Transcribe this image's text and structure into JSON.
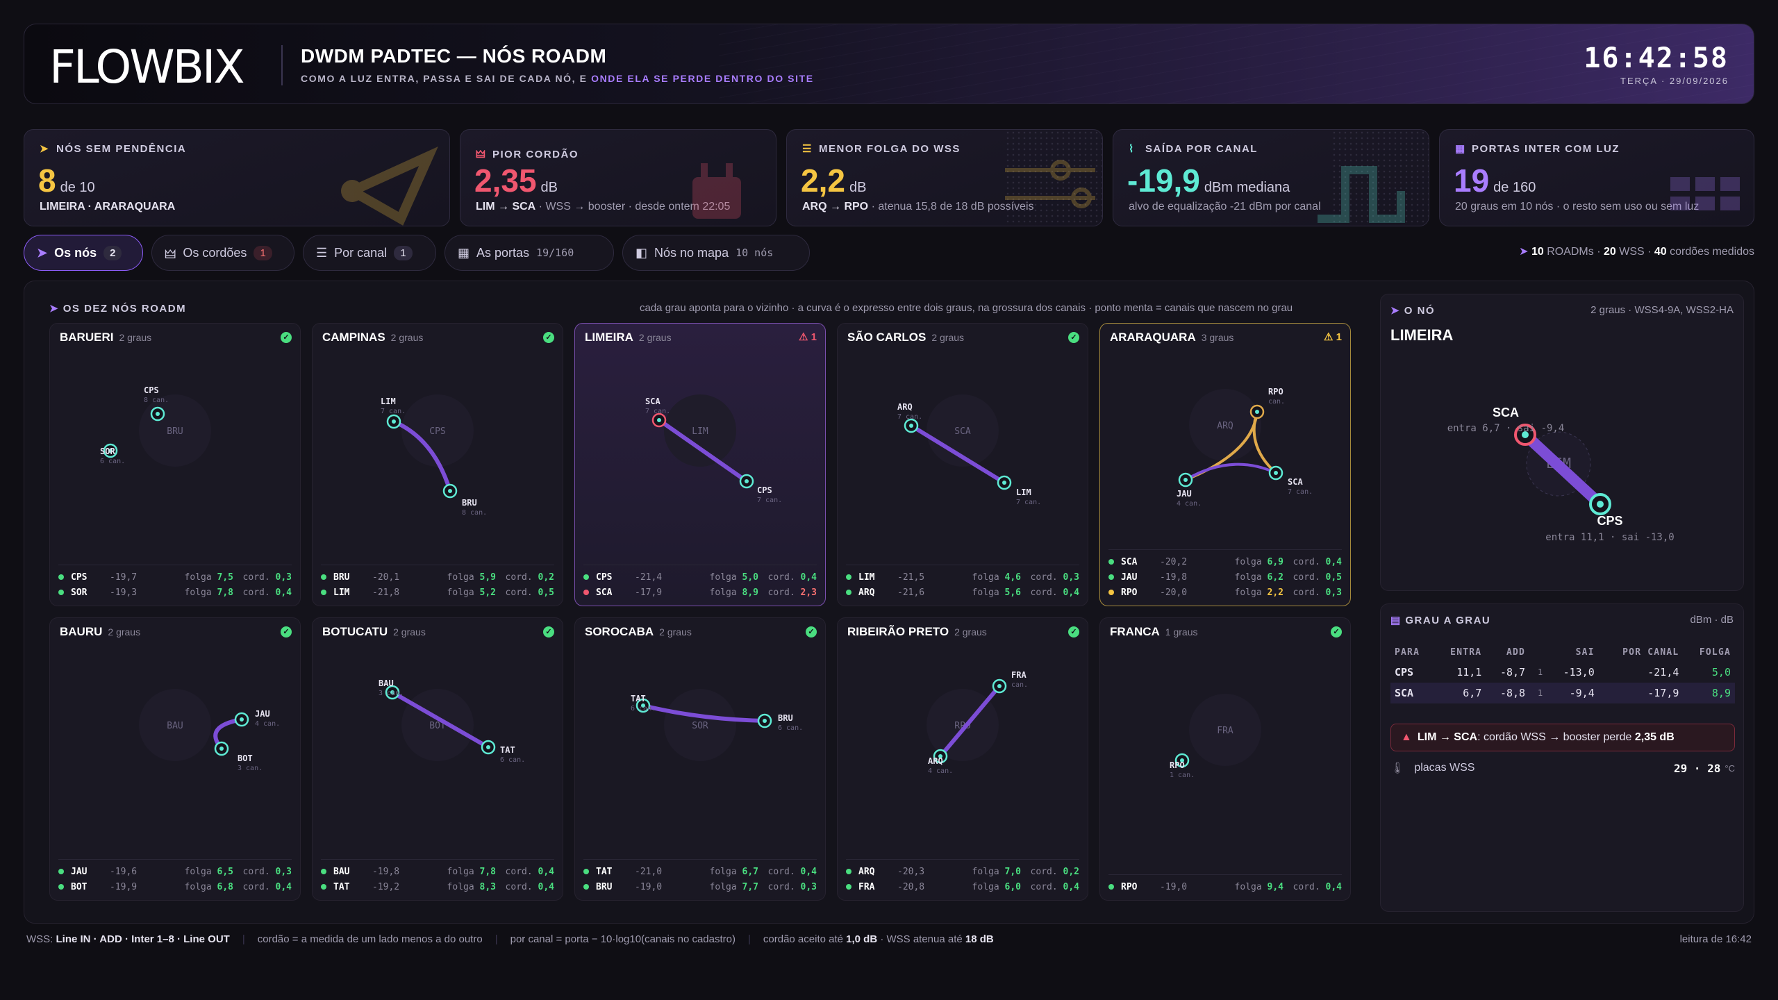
{
  "header": {
    "logo": "FLOWBIX",
    "title": "DWDM PADTEC — NÓS ROADM",
    "subtitle_pre": "COMO A LUZ ENTRA, PASSA E SAI DE CADA NÓ, E ",
    "subtitle_acc": "ONDE ELA SE PERDE DENTRO DO SITE",
    "time": "16:42:58",
    "date": "TERÇA · 29/09/2026"
  },
  "kpis": [
    {
      "label": "NÓS SEM PENDÊNCIA",
      "value": "8",
      "unit": "de 10",
      "foot": "LIMEIRA · ARARAQUARA",
      "color": "#f5c542"
    },
    {
      "label": "PIOR CORDÃO",
      "value": "2,35",
      "unit": "dB",
      "foot_b": "LIM → SCA",
      "foot": " · WSS → booster · desde ontem 22:05",
      "color": "#f0576f"
    },
    {
      "label": "MENOR FOLGA DO WSS",
      "value": "2,2",
      "unit": "dB",
      "foot_b": "ARQ → RPO",
      "foot": " · atenua 15,8 de 18 dB possíveis",
      "color": "#f5c542"
    },
    {
      "label": "SAÍDA POR CANAL",
      "value": "-19,9",
      "unit": "dBm mediana",
      "foot": "alvo de equalização -21 dBm por canal",
      "color": "#5eead4"
    },
    {
      "label": "PORTAS INTER COM LUZ",
      "value": "19",
      "unit": "de 160",
      "foot": "20 graus em 10 nós · o resto sem uso ou sem luz",
      "color": "#a97dff"
    }
  ],
  "tabs": [
    {
      "label": "Os nós",
      "badge": "2"
    },
    {
      "label": "Os cordões",
      "badge": "1"
    },
    {
      "label": "Por canal",
      "badge": "1"
    },
    {
      "label": "As portas",
      "count": "19/160"
    },
    {
      "label": "Nós no mapa",
      "count": "10 nós"
    }
  ],
  "summary": {
    "roadms": "10",
    "roadms_lbl": "ROADMs ·",
    "wss": "20",
    "wss_lbl": "WSS ·",
    "cords": "40",
    "cords_lbl": "cordões medidos"
  },
  "section": {
    "title": "OS DEZ NÓS ROADM",
    "note": "cada grau aponta para o vizinho · a curva é o expresso entre dois graus, na grossura dos canais · ponto menta = canais que nascem no grau"
  },
  "nodes": [
    {
      "name": "BARUERI",
      "center": "BRU",
      "degrees": "2 graus",
      "status": "✓",
      "rows": [
        [
          "CPS",
          "-19,7",
          "7,5",
          "0,3"
        ],
        [
          "SOR",
          "-19,3",
          "7,8",
          "0,4"
        ]
      ],
      "deglabels": [
        "CPS",
        "SOR"
      ],
      "degsub": [
        "8 can.",
        "6 can."
      ]
    },
    {
      "name": "CAMPINAS",
      "center": "CPS",
      "degrees": "2 graus",
      "status": "✓",
      "rows": [
        [
          "BRU",
          "-20,1",
          "5,9",
          "0,2"
        ],
        [
          "LIM",
          "-21,8",
          "5,2",
          "0,5"
        ]
      ],
      "deglabels": [
        "LIM",
        "BRU"
      ],
      "degsub": [
        "7 can.",
        "8 can."
      ]
    },
    {
      "name": "LIMEIRA",
      "center": "LIM",
      "degrees": "2 graus",
      "status": "⚠ 1",
      "rows": [
        [
          "CPS",
          "-21,4",
          "5,0",
          "0,4"
        ],
        [
          "SCA",
          "-17,9",
          "8,9",
          "2,3"
        ]
      ],
      "deglabels": [
        "SCA",
        "CPS"
      ],
      "degsub": [
        "7 can.",
        "7 can."
      ]
    },
    {
      "name": "SÃO CARLOS",
      "center": "SCA",
      "degrees": "2 graus",
      "status": "✓",
      "rows": [
        [
          "LIM",
          "-21,5",
          "4,6",
          "0,3"
        ],
        [
          "ARQ",
          "-21,6",
          "5,6",
          "0,4"
        ]
      ],
      "deglabels": [
        "ARQ",
        "LIM"
      ],
      "degsub": [
        "7 can.",
        "7 can."
      ]
    },
    {
      "name": "ARARAQUARA",
      "center": "ARQ",
      "degrees": "3 graus",
      "status": "⚠ 1",
      "rows": [
        [
          "SCA",
          "-20,2",
          "6,9",
          "0,4"
        ],
        [
          "JAU",
          "-19,8",
          "6,2",
          "0,5"
        ],
        [
          "RPO",
          "-20,0",
          "2,2",
          "0,3"
        ]
      ],
      "deglabels": [
        "RPO",
        "JAU",
        "SCA"
      ],
      "degsub": [
        "can.",
        "4 can.",
        "7 can."
      ]
    },
    {
      "name": "BAURU",
      "center": "BAU",
      "degrees": "2 graus",
      "status": "✓",
      "rows": [
        [
          "JAU",
          "-19,6",
          "6,5",
          "0,3"
        ],
        [
          "BOT",
          "-19,9",
          "6,8",
          "0,4"
        ]
      ],
      "deglabels": [
        "JAU",
        "BOT"
      ],
      "degsub": [
        "4 can.",
        "3 can."
      ]
    },
    {
      "name": "BOTUCATU",
      "center": "BOT",
      "degrees": "2 graus",
      "status": "✓",
      "rows": [
        [
          "BAU",
          "-19,8",
          "7,8",
          "0,4"
        ],
        [
          "TAT",
          "-19,2",
          "8,3",
          "0,4"
        ]
      ],
      "deglabels": [
        "BAU",
        "TAT"
      ],
      "degsub": [
        "3 can.",
        "6 can."
      ]
    },
    {
      "name": "SOROCABA",
      "center": "SOR",
      "degrees": "2 graus",
      "status": "✓",
      "rows": [
        [
          "TAT",
          "-21,0",
          "6,7",
          "0,4"
        ],
        [
          "BRU",
          "-19,0",
          "7,7",
          "0,3"
        ]
      ],
      "deglabels": [
        "TAT",
        "BRU"
      ],
      "degsub": [
        "6 can.",
        "6 can."
      ]
    },
    {
      "name": "RIBEIRÃO PRETO",
      "center": "RPO",
      "degrees": "2 graus",
      "status": "✓",
      "rows": [
        [
          "ARQ",
          "-20,3",
          "7,0",
          "0,2"
        ],
        [
          "FRA",
          "-20,8",
          "6,0",
          "0,4"
        ]
      ],
      "deglabels": [
        "FRA",
        "ARQ"
      ],
      "degsub": [
        "can.",
        "4 can."
      ]
    },
    {
      "name": "FRANCA",
      "center": "FRA",
      "degrees": "1 graus",
      "status": "✓",
      "rows": [
        [
          "RPO",
          "-19,0",
          "9,4",
          "0,4"
        ]
      ],
      "deglabels": [
        "RPO"
      ],
      "degsub": [
        "1 can."
      ]
    }
  ],
  "row_labels": {
    "folga": "folga",
    "cord": "cord."
  },
  "side": {
    "title": "O NÓ",
    "meta": "2 graus · WSS4-9A, WSS2-HA",
    "node": "LIMEIRA",
    "center": "LIM",
    "sca": "SCA",
    "sca_sub": "entra 6,7 · sai -9,4",
    "cps": "CPS",
    "cps_sub": "entra 11,1 · sai -13,0",
    "grau_title": "GRAU A GRAU",
    "grau_unit": "dBm · dB",
    "cols": [
      "PARA",
      "ENTRA",
      "ADD",
      "SAI",
      "POR CANAL",
      "FOLGA"
    ],
    "grau_rows": [
      [
        "CPS",
        "11,1",
        "-8,7",
        "1",
        "-13,0",
        "-21,4",
        "5,0"
      ],
      [
        "SCA",
        "6,7",
        "-8,8",
        "1",
        "-9,4",
        "-17,9",
        "8,9"
      ]
    ],
    "alert_b": "LIM → SCA",
    "alert": ": cordão WSS → booster perde ",
    "alert_v": "2,35 dB",
    "temp_lbl": "placas WSS",
    "temp_v": "29 · 28",
    "temp_u": "°C"
  },
  "footer": {
    "a_pre": "WSS:",
    "a": "Line IN · ADD · Inter 1–8 · Line OUT",
    "b": "cordão = a medida de um lado menos a do outro",
    "c": "por canal = porta − 10·log10(canais no cadastro)",
    "d_pre": "cordão aceito até ",
    "d_v1": "1,0 dB",
    "d_mid": " · WSS atenua até ",
    "d_v2": "18 dB",
    "e": "leitura de 16:42"
  },
  "colors": {
    "mint": "#5eead4",
    "purple": "#7c4dd6",
    "red": "#f0576f",
    "yellow": "#e0a94a",
    "green": "#4ade80"
  }
}
